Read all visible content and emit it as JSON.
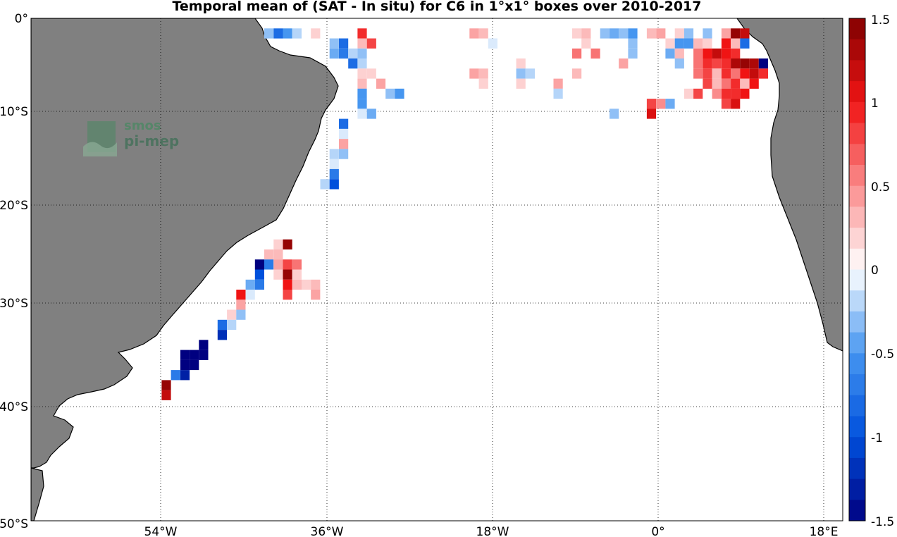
{
  "title": "Temporal mean of (SAT - In situ) for C6 in 1°x1° boxes over 2010-2017",
  "watermark": {
    "line1": "smos",
    "line2": "pi-mep"
  },
  "map": {
    "projection": "equirectangular",
    "lon_range": [
      -68,
      19
    ],
    "lat_range": [
      -50,
      0
    ],
    "land_color": "#808080",
    "ocean_color": "#ffffff",
    "grid": true
  },
  "axes": {
    "x_ticks": [
      {
        "lon": -54,
        "label": "54°W"
      },
      {
        "lon": -36,
        "label": "36°W"
      },
      {
        "lon": -18,
        "label": "18°W"
      },
      {
        "lon": 0,
        "label": "0°"
      },
      {
        "lon": 18,
        "label": "18°E"
      }
    ],
    "y_ticks": [
      {
        "lat": 0,
        "label": "0°"
      },
      {
        "lat": -10,
        "label": "10°S"
      },
      {
        "lat": -20,
        "label": "20°S"
      },
      {
        "lat": -30,
        "label": "30°S"
      },
      {
        "lat": -40,
        "label": "40°S"
      },
      {
        "lat": -50,
        "label": "50°S"
      }
    ]
  },
  "colorbar": {
    "range": [
      -1.5,
      1.5
    ],
    "ticks": [
      "1.5",
      "1",
      "0.5",
      "0",
      "-0.5",
      "-1",
      "-1.5"
    ],
    "tick_values": [
      1.5,
      1,
      0.5,
      0,
      -0.5,
      -1,
      -1.5
    ]
  },
  "chart_data": {
    "type": "heatmap",
    "title": "Temporal mean of (SAT - In situ) for C6 in 1°x1° boxes over 2010-2017",
    "cell_size_deg": 1,
    "value_range": [
      -1.5,
      1.5
    ],
    "cells": [
      [
        -43,
        -1,
        -0.3
      ],
      [
        -42,
        -1,
        -0.8
      ],
      [
        -41,
        -1,
        -0.5
      ],
      [
        -40,
        -1,
        -0.2
      ],
      [
        -38,
        -1,
        0.2
      ],
      [
        -33,
        -1,
        0.9
      ],
      [
        -21,
        -1,
        0.4
      ],
      [
        -20,
        -1,
        0.3
      ],
      [
        -10,
        -1,
        0.2
      ],
      [
        -9,
        -1,
        0.3
      ],
      [
        -7,
        -1,
        -0.3
      ],
      [
        -6,
        -1,
        -0.4
      ],
      [
        -5,
        -1,
        -0.3
      ],
      [
        -4,
        -1,
        -0.5
      ],
      [
        -2,
        -1,
        0.3
      ],
      [
        -1,
        -1,
        0.4
      ],
      [
        1,
        -1,
        0.2
      ],
      [
        2,
        -1,
        -0.3
      ],
      [
        4,
        -1,
        -0.3
      ],
      [
        6,
        -1,
        0.4
      ],
      [
        7,
        -1,
        1.4
      ],
      [
        8,
        -1,
        1.2
      ],
      [
        -36,
        -2,
        -0.3
      ],
      [
        -35,
        -2,
        -0.8
      ],
      [
        -33,
        -2,
        0.3
      ],
      [
        -32,
        -2,
        0.8
      ],
      [
        -19,
        -2,
        -0.1
      ],
      [
        -9,
        -2,
        0.2
      ],
      [
        -4,
        -2,
        -0.3
      ],
      [
        0,
        -2,
        0.2
      ],
      [
        1,
        -2,
        -0.5
      ],
      [
        2,
        -2,
        -0.5
      ],
      [
        3,
        -2,
        0.3
      ],
      [
        4,
        -2,
        0.2
      ],
      [
        6,
        -2,
        1.0
      ],
      [
        7,
        -2,
        0.3
      ],
      [
        8,
        -2,
        -0.8
      ],
      [
        -36,
        -3,
        -0.4
      ],
      [
        -35,
        -3,
        -0.7
      ],
      [
        -34,
        -3,
        -0.2
      ],
      [
        -33,
        -3,
        -0.3
      ],
      [
        -10,
        -3,
        0.6
      ],
      [
        -8,
        -3,
        0.6
      ],
      [
        -4,
        -3,
        -0.3
      ],
      [
        0,
        -3,
        -0.4
      ],
      [
        1,
        -3,
        0.3
      ],
      [
        3,
        -3,
        0.6
      ],
      [
        4,
        -3,
        1.0
      ],
      [
        5,
        -3,
        1.2
      ],
      [
        6,
        -3,
        1.0
      ],
      [
        7,
        -3,
        0.9
      ],
      [
        -34,
        -4,
        -0.8
      ],
      [
        -33,
        -4,
        -0.2
      ],
      [
        -16,
        -4,
        0.2
      ],
      [
        -5,
        -4,
        0.4
      ],
      [
        1,
        -4,
        -0.3
      ],
      [
        3,
        -4,
        0.6
      ],
      [
        4,
        -4,
        0.9
      ],
      [
        5,
        -4,
        0.8
      ],
      [
        6,
        -4,
        0.9
      ],
      [
        7,
        -4,
        1.3
      ],
      [
        8,
        -4,
        1.4
      ],
      [
        9,
        -4,
        1.3
      ],
      [
        10,
        -4,
        -1.5
      ],
      [
        -33,
        -5,
        0.2
      ],
      [
        -32,
        -5,
        0.2
      ],
      [
        -21,
        -5,
        0.4
      ],
      [
        -20,
        -5,
        0.3
      ],
      [
        -16,
        -5,
        -0.3
      ],
      [
        -15,
        -5,
        -0.2
      ],
      [
        -10,
        -5,
        0.3
      ],
      [
        3,
        -5,
        0.6
      ],
      [
        4,
        -5,
        0.8
      ],
      [
        5,
        -5,
        0.3
      ],
      [
        6,
        -5,
        0.9
      ],
      [
        7,
        -5,
        0.6
      ],
      [
        8,
        -5,
        1.0
      ],
      [
        9,
        -5,
        1.2
      ],
      [
        10,
        -5,
        0.9
      ],
      [
        -33,
        -6,
        0.3
      ],
      [
        -31,
        -6,
        0.4
      ],
      [
        -20,
        -6,
        0.2
      ],
      [
        -16,
        -6,
        0.2
      ],
      [
        -12,
        -6,
        0.4
      ],
      [
        4,
        -6,
        0.8
      ],
      [
        5,
        -6,
        0.3
      ],
      [
        6,
        -6,
        0.6
      ],
      [
        7,
        -6,
        0.9
      ],
      [
        8,
        -6,
        0.3
      ],
      [
        9,
        -6,
        1.0
      ],
      [
        -33,
        -7,
        -0.5
      ],
      [
        -30,
        -7,
        -0.3
      ],
      [
        -29,
        -7,
        -0.5
      ],
      [
        -12,
        -7,
        -0.2
      ],
      [
        2,
        -7,
        0.2
      ],
      [
        3,
        -7,
        0.8
      ],
      [
        5,
        -7,
        0.5
      ],
      [
        6,
        -7,
        0.9
      ],
      [
        7,
        -7,
        0.9
      ],
      [
        8,
        -7,
        1.0
      ],
      [
        -33,
        -8,
        -0.5
      ],
      [
        -2,
        -8,
        0.8
      ],
      [
        -1,
        -8,
        0.5
      ],
      [
        0,
        -8,
        -0.4
      ],
      [
        6,
        -8,
        0.8
      ],
      [
        7,
        -8,
        1.1
      ],
      [
        -33,
        -9,
        -0.1
      ],
      [
        -32,
        -9,
        -0.4
      ],
      [
        -6,
        -9,
        -0.3
      ],
      [
        -2,
        -9,
        1.1
      ],
      [
        -35,
        -10,
        -0.8
      ],
      [
        -35,
        -11,
        -0.1
      ],
      [
        -35,
        -12,
        0.4
      ],
      [
        -36,
        -13,
        -0.2
      ],
      [
        -35,
        -13,
        -0.3
      ],
      [
        -36,
        -14,
        -0.1
      ],
      [
        -36,
        -15,
        -0.7
      ],
      [
        -37,
        -16,
        -0.2
      ],
      [
        -36,
        -16,
        -1.0
      ],
      [
        -42,
        -22,
        0.2
      ],
      [
        -41,
        -22,
        1.4
      ],
      [
        -43,
        -23,
        0.3
      ],
      [
        -42,
        -23,
        0.3
      ],
      [
        -44,
        -24,
        -1.5
      ],
      [
        -43,
        -24,
        -0.7
      ],
      [
        -42,
        -24,
        0.4
      ],
      [
        -41,
        -24,
        0.8
      ],
      [
        -40,
        -24,
        0.6
      ],
      [
        -44,
        -25,
        -1.0
      ],
      [
        -42,
        -25,
        0.2
      ],
      [
        -41,
        -25,
        1.4
      ],
      [
        -40,
        -25,
        0.2
      ],
      [
        -45,
        -26,
        -0.4
      ],
      [
        -44,
        -26,
        -0.7
      ],
      [
        -41,
        -26,
        1.0
      ],
      [
        -40,
        -26,
        0.3
      ],
      [
        -39,
        -26,
        0.2
      ],
      [
        -38,
        -26,
        0.3
      ],
      [
        -46,
        -27,
        1.0
      ],
      [
        -45,
        -27,
        -0.1
      ],
      [
        -41,
        -27,
        0.8
      ],
      [
        -38,
        -27,
        0.4
      ],
      [
        -46,
        -28,
        0.4
      ],
      [
        -47,
        -29,
        0.2
      ],
      [
        -46,
        -29,
        -0.3
      ],
      [
        -48,
        -30,
        -0.8
      ],
      [
        -47,
        -30,
        -0.2
      ],
      [
        -48,
        -31,
        -1.2
      ],
      [
        -50,
        -32,
        -1.5
      ],
      [
        -50,
        -33,
        -1.5
      ],
      [
        -51,
        -33,
        -1.5
      ],
      [
        -52,
        -33,
        -1.5
      ],
      [
        -51,
        -34,
        -1.5
      ],
      [
        -52,
        -34,
        -1.5
      ],
      [
        -53,
        -35,
        -0.7
      ],
      [
        -52,
        -35,
        -1.3
      ],
      [
        -54,
        -36,
        1.4
      ],
      [
        -54,
        -37,
        1.2
      ]
    ]
  }
}
